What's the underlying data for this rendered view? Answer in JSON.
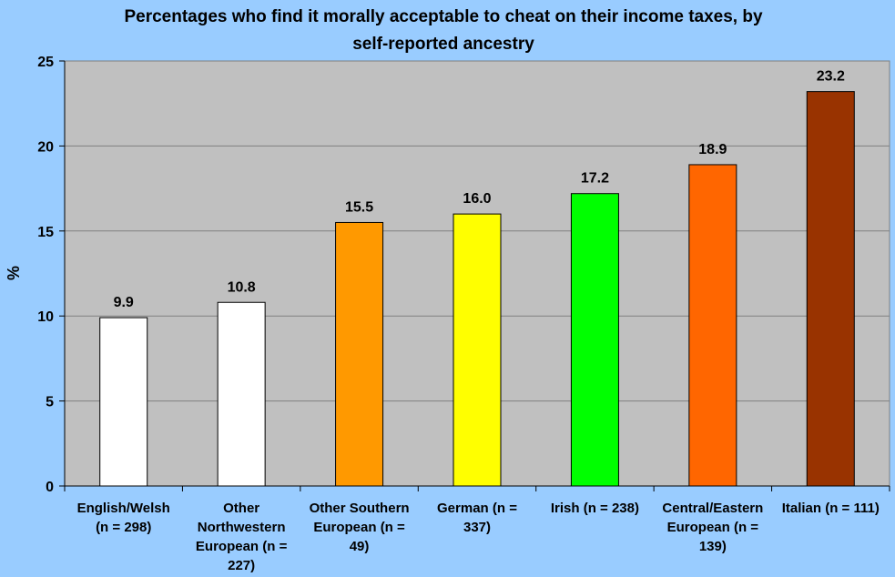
{
  "chart_data": {
    "type": "bar",
    "title_lines": [
      "Percentages who find it morally acceptable to cheat on their income taxes, by",
      "self-reported ancestry"
    ],
    "ylabel": "%",
    "xlabel": "",
    "ylim": [
      0,
      25
    ],
    "y_ticks": [
      0,
      5,
      10,
      15,
      20,
      25
    ],
    "grid": true,
    "legend": "none",
    "colors": {
      "figure_background": "#99ccff",
      "plot_background": "#c0c0c0",
      "gridline": "#808080",
      "bar_outline": "#000000"
    },
    "categories": [
      {
        "label_lines": [
          "English/Welsh",
          "(n = 298)"
        ],
        "value": 9.9,
        "value_label": "9.9",
        "color": "#ffffff"
      },
      {
        "label_lines": [
          "Other",
          "Northwestern",
          "European (n =",
          "227)"
        ],
        "value": 10.8,
        "value_label": "10.8",
        "color": "#ffffff"
      },
      {
        "label_lines": [
          "Other Southern",
          "European (n =",
          "49)"
        ],
        "value": 15.5,
        "value_label": "15.5",
        "color": "#ff9900"
      },
      {
        "label_lines": [
          "German (n =",
          "337)"
        ],
        "value": 16.0,
        "value_label": "16.0",
        "color": "#ffff00"
      },
      {
        "label_lines": [
          "Irish (n = 238)"
        ],
        "value": 17.2,
        "value_label": "17.2",
        "color": "#00ff00"
      },
      {
        "label_lines": [
          "Central/Eastern",
          "European (n =",
          "139)"
        ],
        "value": 18.9,
        "value_label": "18.9",
        "color": "#ff6600"
      },
      {
        "label_lines": [
          "Italian (n = 111)"
        ],
        "value": 23.2,
        "value_label": "23.2",
        "color": "#993300"
      }
    ]
  }
}
